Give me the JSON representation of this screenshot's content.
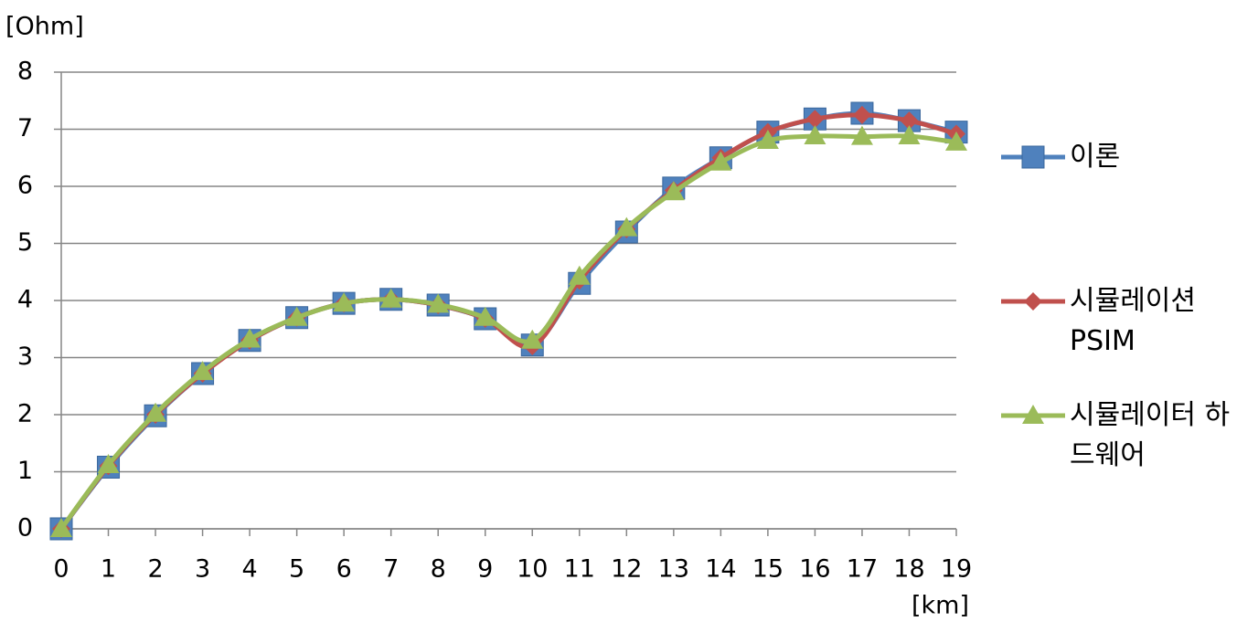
{
  "chart_data": {
    "type": "line",
    "y_label": "[Ohm]",
    "x_label": "[km]",
    "x": [
      0,
      1,
      2,
      3,
      4,
      5,
      6,
      7,
      8,
      9,
      10,
      11,
      12,
      13,
      14,
      15,
      16,
      17,
      18,
      19
    ],
    "xlim": [
      0,
      19
    ],
    "xticks": [
      0,
      1,
      2,
      3,
      4,
      5,
      6,
      7,
      8,
      9,
      10,
      11,
      12,
      13,
      14,
      15,
      16,
      17,
      18,
      19
    ],
    "ylim": [
      0,
      8
    ],
    "yticks": [
      0,
      1,
      2,
      3,
      4,
      5,
      6,
      7,
      8
    ],
    "grid": true,
    "smooth": true,
    "legend": "right",
    "series": [
      {
        "name": "이론",
        "color": "#4f81bd",
        "marker": "square",
        "values": [
          0,
          1.08,
          1.98,
          2.72,
          3.3,
          3.7,
          3.95,
          4.02,
          3.92,
          3.68,
          3.22,
          4.3,
          5.2,
          5.97,
          6.5,
          6.95,
          7.18,
          7.28,
          7.15,
          6.95
        ]
      },
      {
        "name": "시뮬레이션 PSIM",
        "color": "#c0504d",
        "marker": "diamond",
        "values": [
          0,
          1.1,
          2.0,
          2.72,
          3.3,
          3.7,
          3.95,
          4.02,
          3.92,
          3.68,
          3.2,
          4.35,
          5.25,
          5.93,
          6.5,
          6.95,
          7.18,
          7.25,
          7.15,
          6.92
        ]
      },
      {
        "name": "시뮬레이터 하드웨어",
        "color": "#9bbb59",
        "marker": "triangle",
        "values": [
          0,
          1.12,
          2.02,
          2.75,
          3.32,
          3.7,
          3.95,
          4.02,
          3.93,
          3.7,
          3.3,
          4.42,
          5.27,
          5.9,
          6.42,
          6.8,
          6.88,
          6.87,
          6.88,
          6.77
        ]
      }
    ]
  }
}
